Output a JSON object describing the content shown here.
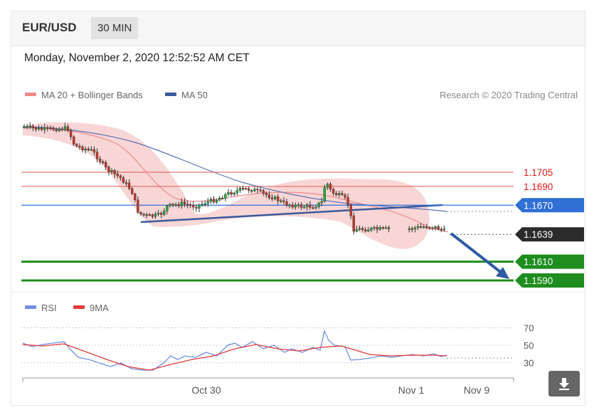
{
  "header": {
    "symbol": "EUR/USD",
    "timeframe": "30 MIN"
  },
  "timestamp": "Monday, November 2, 2020 12:52:52 AM CET",
  "legend": [
    {
      "label": "MA 20 + Bollinger Bands",
      "color": "#f08a8a"
    },
    {
      "label": "MA 50",
      "color": "#3a5a9c"
    }
  ],
  "credit": "Research © 2020 Trading Central",
  "chart_data": [
    {
      "type": "candlestick",
      "x_ticks": [
        "Oct 30",
        "Nov 1",
        "Nov 9"
      ],
      "levels": [
        {
          "value": 1.1705,
          "label": "1.1705",
          "style": "resistance-thin",
          "color": "#e8584f"
        },
        {
          "value": 1.169,
          "label": "1.1690",
          "style": "resistance-thin",
          "color": "#e8584f"
        },
        {
          "value": 1.167,
          "label": "1.1670",
          "style": "pivot",
          "color": "#2f6fd6"
        },
        {
          "value": 1.1639,
          "label": "1.1639",
          "style": "last-price",
          "color": "#333333"
        },
        {
          "value": 1.161,
          "label": "1.1610",
          "style": "support",
          "color": "#1e8c1e"
        },
        {
          "value": 1.159,
          "label": "1.1590",
          "style": "support",
          "color": "#1e8c1e"
        }
      ],
      "y_range": [
        1.157,
        1.18
      ],
      "last_price": 1.1639,
      "forecast_arrow": {
        "from": 1.1636,
        "to": 1.159,
        "direction": "down"
      }
    },
    {
      "type": "line",
      "series": [
        {
          "name": "RSI",
          "color": "#6f8fe0"
        },
        {
          "name": "9MA",
          "color": "#e53b3b"
        }
      ],
      "y_ticks": [
        70,
        50,
        30
      ],
      "ylim": [
        20,
        80
      ]
    }
  ]
}
